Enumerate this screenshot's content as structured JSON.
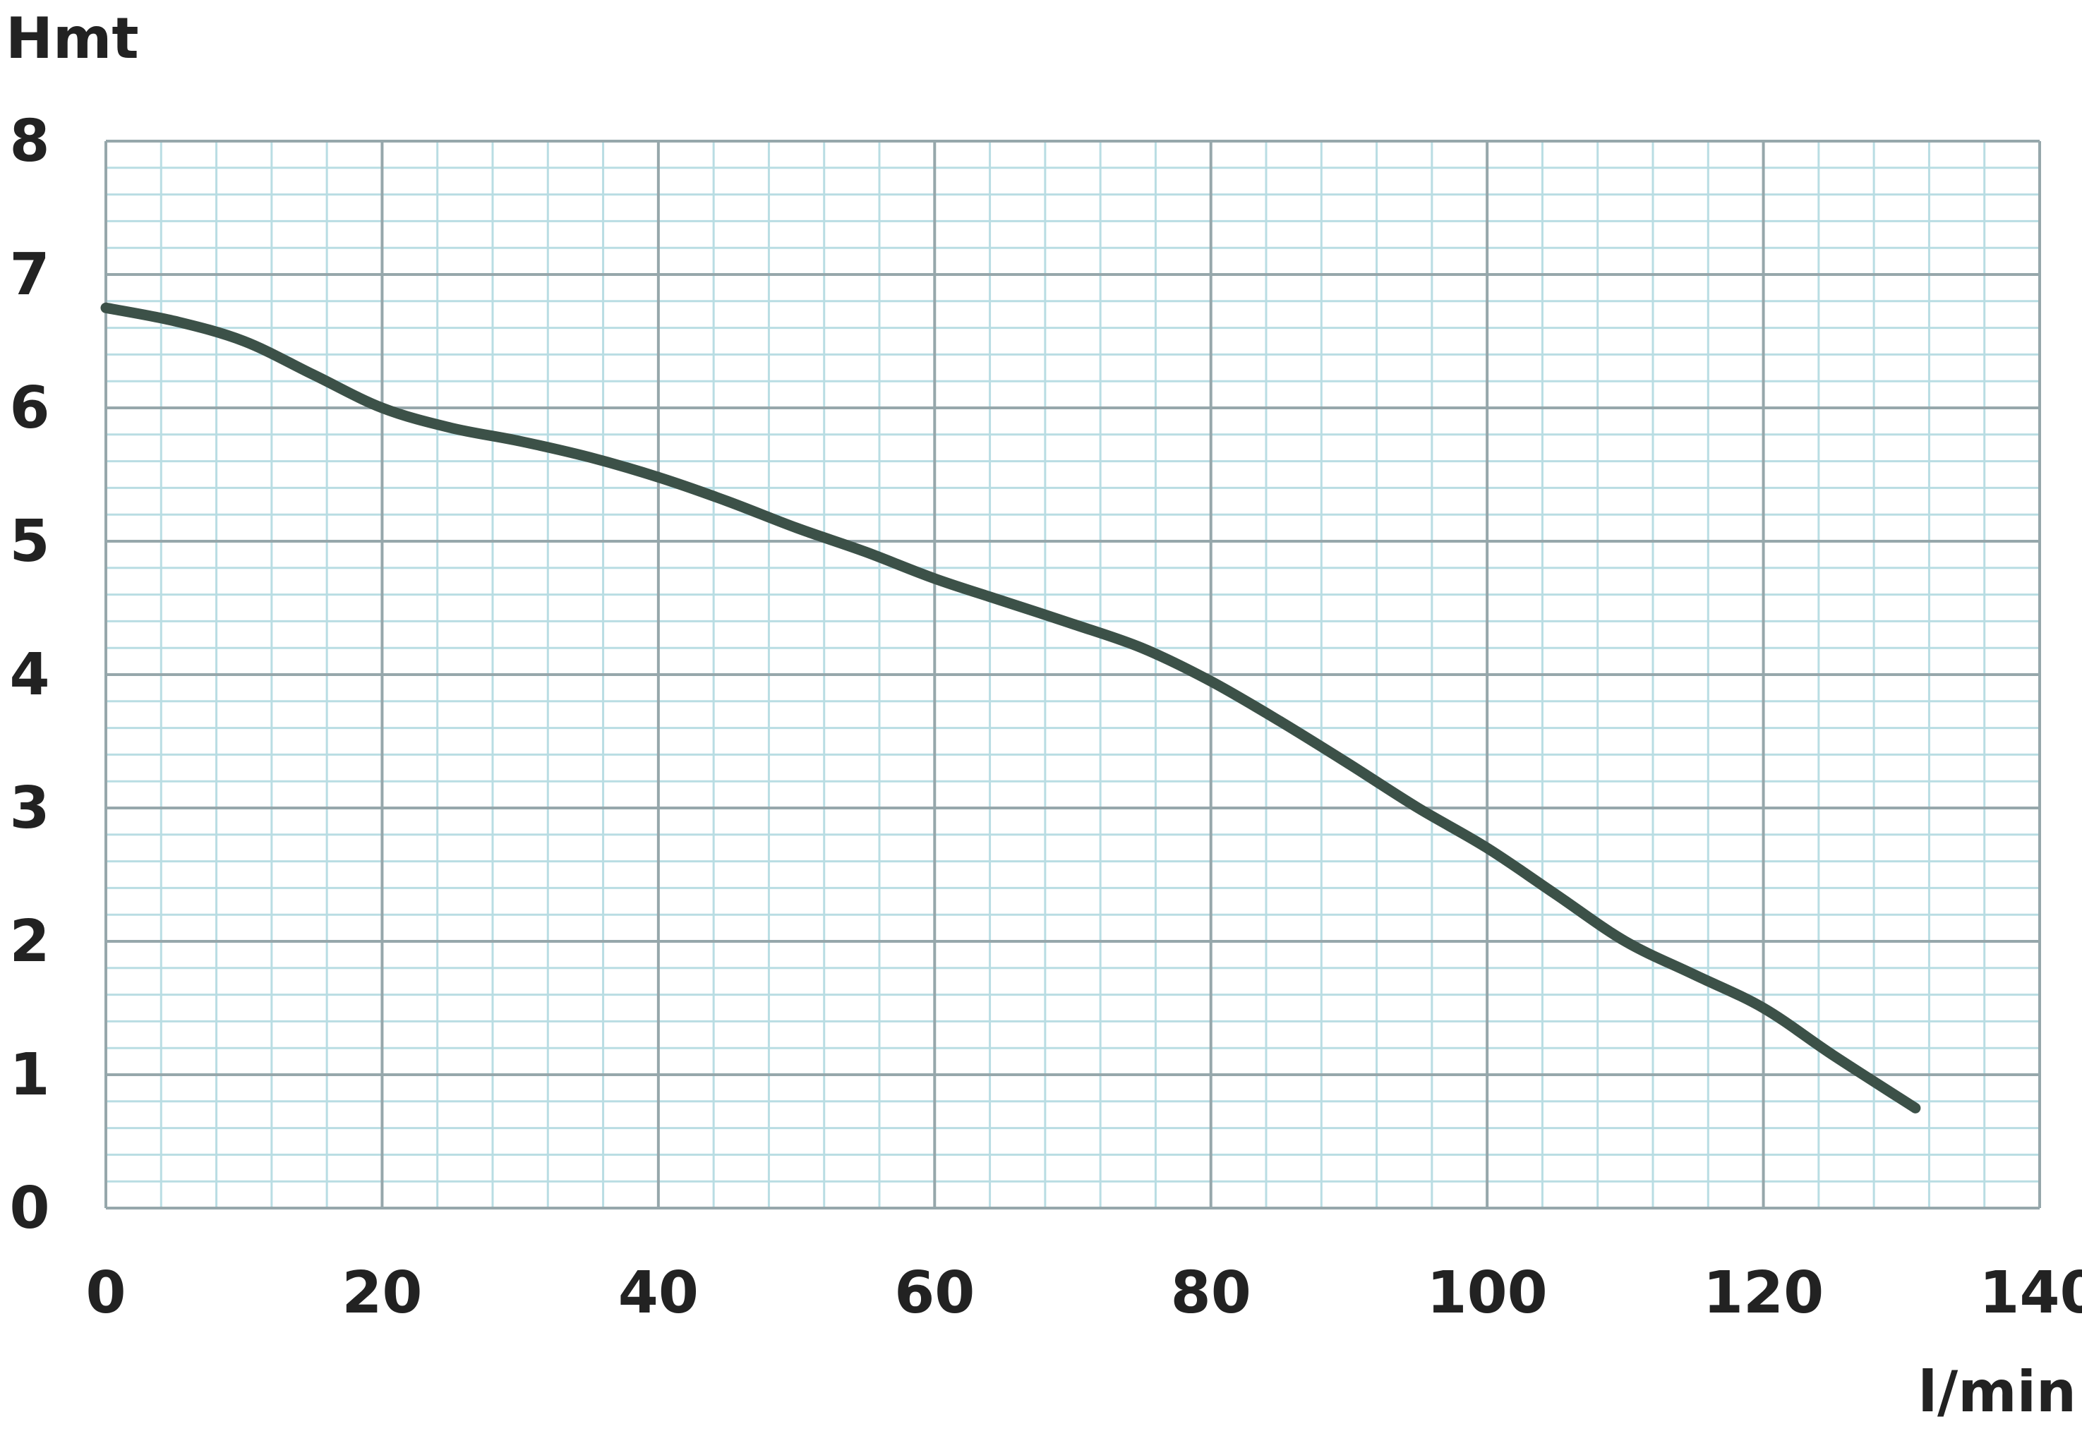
{
  "chart_data": {
    "type": "line",
    "xlabel": "l/min",
    "ylabel": "Hmt",
    "xlim": [
      0,
      140
    ],
    "ylim": [
      0,
      8
    ],
    "x_ticks": [
      "0",
      "20",
      "40",
      "60",
      "80",
      "100",
      "120",
      "140"
    ],
    "y_ticks": [
      "0",
      "1",
      "2",
      "3",
      "4",
      "5",
      "6",
      "7",
      "8"
    ],
    "x_minor_step": 4,
    "y_minor_step": 0.2,
    "grid": true,
    "legend": "none",
    "series": [
      {
        "color": "#3c5148",
        "x": [
          0,
          5,
          10,
          15,
          20,
          25,
          30,
          35,
          40,
          45,
          50,
          55,
          60,
          65,
          70,
          75,
          80,
          85,
          90,
          95,
          100,
          105,
          110,
          115,
          120,
          125,
          131
        ],
        "y": [
          6.75,
          6.65,
          6.5,
          6.25,
          6.0,
          5.85,
          5.75,
          5.63,
          5.48,
          5.3,
          5.1,
          4.92,
          4.72,
          4.55,
          4.38,
          4.2,
          3.95,
          3.65,
          3.33,
          3.0,
          2.7,
          2.35,
          2.0,
          1.75,
          1.5,
          1.15,
          0.75
        ]
      }
    ]
  }
}
